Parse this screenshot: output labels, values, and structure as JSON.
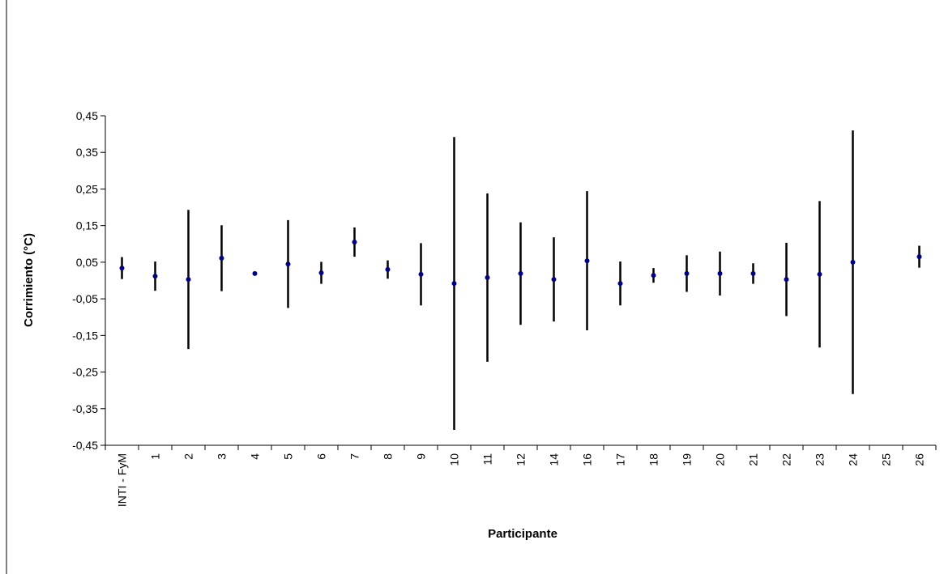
{
  "chart_data": {
    "type": "errorbar",
    "x_label": "Participante",
    "y_label": "Corrimiento (°C)",
    "categories": [
      "INTI - FyM",
      "1",
      "2",
      "3",
      "4",
      "5",
      "6",
      "7",
      "8",
      "9",
      "10",
      "11",
      "12",
      "14",
      "16",
      "17",
      "18",
      "19",
      "20",
      "21",
      "22",
      "23",
      "24",
      "25",
      "26"
    ],
    "values": [
      0.034,
      0.012,
      0.003,
      0.061,
      0.019,
      0.045,
      0.021,
      0.105,
      0.03,
      0.017,
      -0.008,
      0.008,
      0.019,
      0.003,
      0.054,
      -0.008,
      0.014,
      0.019,
      0.019,
      0.019,
      0.003,
      0.017,
      0.05,
      null,
      0.065
    ],
    "errors": [
      0.03,
      0.04,
      0.19,
      0.09,
      0,
      0.12,
      0.03,
      0.04,
      0.025,
      0.085,
      0.4,
      0.23,
      0.14,
      0.115,
      0.19,
      0.06,
      0.02,
      0.05,
      0.06,
      0.028,
      0.1,
      0.2,
      0.36,
      null,
      0.03
    ],
    "color": "#000080",
    "error_color": "#000000",
    "ylim": [
      -0.45,
      0.45
    ],
    "yticks": [
      {
        "value": -0.45,
        "label": "-0,45"
      },
      {
        "value": -0.35,
        "label": "-0,35"
      },
      {
        "value": -0.25,
        "label": "-0,25"
      },
      {
        "value": -0.15,
        "label": "-0,15"
      },
      {
        "value": -0.05,
        "label": "-0,05"
      },
      {
        "value": 0.05,
        "label": "0,05"
      },
      {
        "value": 0.15,
        "label": "0,15"
      },
      {
        "value": 0.25,
        "label": "0,25"
      },
      {
        "value": 0.35,
        "label": "0,35"
      },
      {
        "value": 0.45,
        "label": "0,45"
      }
    ],
    "grid": false
  }
}
